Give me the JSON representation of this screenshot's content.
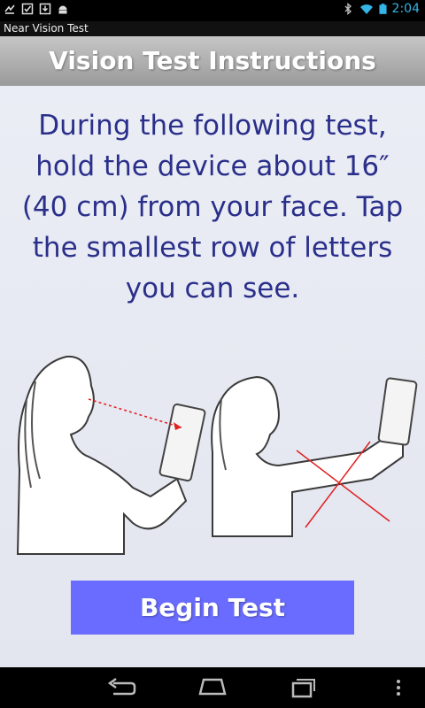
{
  "title_bar": {
    "app_name": "Near Vision Test"
  },
  "status_bar": {
    "time": "2:04"
  },
  "header": {
    "title": "Vision Test Instructions"
  },
  "instructions": {
    "text": "During the following test, hold the device about 16″ (40 cm) from your face. Tap the smallest row of letters you can see."
  },
  "button": {
    "label": "Begin Test",
    "color": "#6a6cff"
  },
  "colors": {
    "instruction_text": "#2a2f8a",
    "header_gradient_top": "#c6c6c6",
    "header_gradient_bottom": "#9a9a9a"
  },
  "icons": {
    "status_left": [
      "missed-call-icon",
      "checkbox-icon",
      "download-icon",
      "android-icon"
    ],
    "status_right": [
      "bluetooth-icon",
      "wifi-icon",
      "battery-icon"
    ],
    "nav": [
      "back-icon",
      "home-icon",
      "recent-apps-icon",
      "menu-icon"
    ]
  }
}
